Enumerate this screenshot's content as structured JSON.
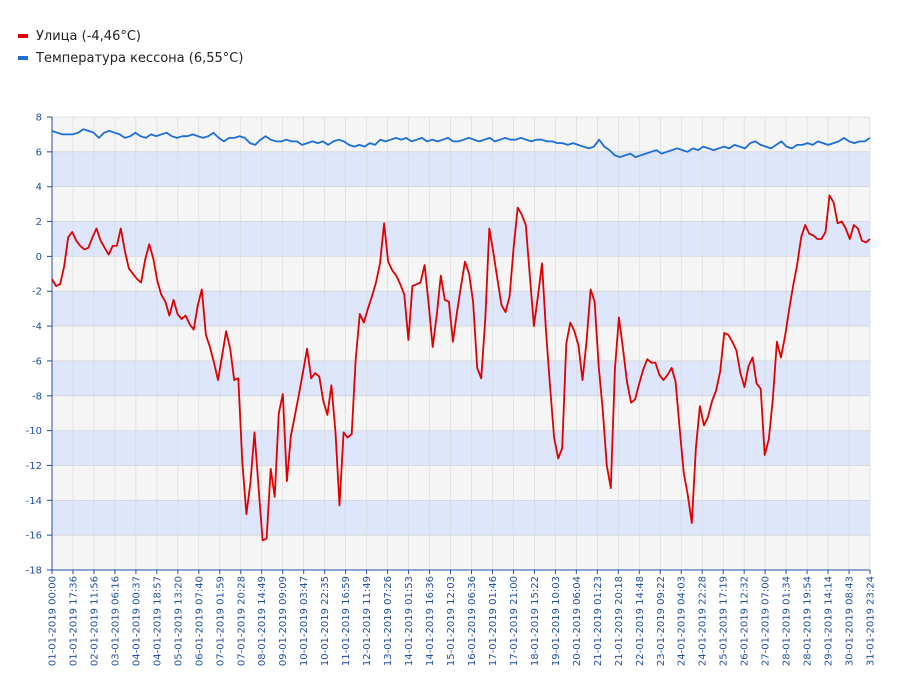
{
  "legend": [
    {
      "label": "Улица (-4,46°C)",
      "color": "#e00000"
    },
    {
      "label": "Температура кессона (6,55°C)",
      "color": "#1c6fd8"
    }
  ],
  "chart_data": {
    "type": "line",
    "title": "",
    "xlabel": "",
    "ylabel": "",
    "ylim": [
      -18,
      8
    ],
    "y_ticks": [
      8,
      6,
      4,
      2,
      0,
      -2,
      -4,
      -6,
      -8,
      -10,
      -12,
      -14,
      -16,
      -18
    ],
    "grid": true,
    "legend_position": "top-left",
    "x_tick_labels": [
      "01-01-2019 00:00",
      "01-01-2019 17:36",
      "02-01-2019 11:56",
      "03-01-2019 06:16",
      "04-01-2019 00:37",
      "04-01-2019 18:57",
      "05-01-2019 13:20",
      "06-01-2019 07:40",
      "07-01-2019 01:59",
      "07-01-2019 20:28",
      "08-01-2019 14:49",
      "09-01-2019 09:09",
      "10-01-2019 03:47",
      "10-01-2019 22:35",
      "11-01-2019 16:59",
      "12-01-2019 11:49",
      "13-01-2019 07:26",
      "14-01-2019 01:53",
      "14-01-2019 16:36",
      "15-01-2019 12:03",
      "16-01-2019 06:36",
      "17-01-2019 01:46",
      "17-01-2019 21:00",
      "18-01-2019 15:22",
      "19-01-2019 10:03",
      "20-01-2019 06:04",
      "21-01-2019 01:23",
      "21-01-2019 20:18",
      "22-01-2019 14:48",
      "23-01-2019 09:22",
      "24-01-2019 04:03",
      "24-01-2019 22:28",
      "25-01-2019 17:19",
      "26-01-2019 12:32",
      "27-01-2019 07:00",
      "28-01-2019 01:34",
      "28-01-2019 19:54",
      "29-01-2019 14:14",
      "30-01-2019 08:43",
      "31-01-2019 23:24"
    ],
    "series": [
      {
        "name": "Улица (-4,46°C)",
        "color": "#e00000",
        "values": [
          -1.3,
          -1.7,
          -1.6,
          -0.6,
          1.1,
          1.4,
          0.9,
          0.6,
          0.4,
          0.5,
          1.1,
          1.6,
          0.9,
          0.5,
          0.1,
          0.6,
          0.6,
          1.6,
          0.3,
          -0.7,
          -1.0,
          -1.3,
          -1.5,
          -0.2,
          0.7,
          -0.1,
          -1.4,
          -2.2,
          -2.6,
          -3.4,
          -2.5,
          -3.3,
          -3.6,
          -3.4,
          -3.9,
          -4.2,
          -2.8,
          -1.9,
          -4.5,
          -5.2,
          -6.1,
          -7.1,
          -5.7,
          -4.3,
          -5.3,
          -7.1,
          -7.0,
          -11.8,
          -14.8,
          -13.0,
          -10.1,
          -13.2,
          -16.3,
          -16.2,
          -12.2,
          -13.8,
          -9.0,
          -7.9,
          -12.9,
          -10.3,
          -9.1,
          -7.9,
          -6.6,
          -5.3,
          -7.0,
          -6.7,
          -6.9,
          -8.3,
          -9.1,
          -7.4,
          -10.1,
          -14.3,
          -10.1,
          -10.4,
          -10.2,
          -5.9,
          -3.3,
          -3.8,
          -3.0,
          -2.3,
          -1.5,
          -0.4,
          1.9,
          -0.3,
          -0.8,
          -1.1,
          -1.6,
          -2.2,
          -4.8,
          -1.7,
          -1.6,
          -1.5,
          -0.5,
          -2.7,
          -5.2,
          -3.4,
          -1.1,
          -2.5,
          -2.6,
          -4.9,
          -3.2,
          -1.7,
          -0.3,
          -1.0,
          -2.6,
          -6.4,
          -7.0,
          -3.6,
          1.6,
          0.2,
          -1.3,
          -2.8,
          -3.2,
          -2.3,
          0.5,
          2.8,
          2.4,
          1.8,
          -1.1,
          -4.0,
          -2.3,
          -0.4,
          -4.3,
          -7.5,
          -10.4,
          -11.6,
          -11.0,
          -5.0,
          -3.8,
          -4.3,
          -5.1,
          -7.1,
          -4.9,
          -1.9,
          -2.6,
          -6.3,
          -8.8,
          -12.0,
          -13.3,
          -6.5,
          -3.5,
          -5.3,
          -7.2,
          -8.4,
          -8.2,
          -7.3,
          -6.5,
          -5.9,
          -6.1,
          -6.1,
          -6.8,
          -7.1,
          -6.8,
          -6.4,
          -7.2,
          -9.9,
          -12.4,
          -13.7,
          -15.3,
          -11.0,
          -8.6,
          -9.7,
          -9.2,
          -8.3,
          -7.7,
          -6.6,
          -4.4,
          -4.5,
          -4.9,
          -5.4,
          -6.7,
          -7.5,
          -6.3,
          -5.8,
          -7.3,
          -7.6,
          -11.4,
          -10.5,
          -8.2,
          -4.9,
          -5.8,
          -4.6,
          -3.1,
          -1.7,
          -0.5,
          1.1,
          1.8,
          1.3,
          1.2,
          1.0,
          1.0,
          1.4,
          3.5,
          3.1,
          1.9,
          2.0,
          1.6,
          1.0,
          1.8,
          1.6,
          0.9,
          0.8,
          1.0
        ]
      },
      {
        "name": "Температура кессона (6,55°C)",
        "color": "#1c6fd8",
        "values": [
          7.2,
          7.1,
          7.0,
          7.0,
          7.0,
          7.1,
          7.3,
          7.2,
          7.1,
          6.8,
          7.1,
          7.2,
          7.1,
          7.0,
          6.8,
          6.9,
          7.1,
          6.9,
          6.8,
          7.0,
          6.9,
          7.0,
          7.1,
          6.9,
          6.8,
          6.9,
          6.9,
          7.0,
          6.9,
          6.8,
          6.9,
          7.1,
          6.8,
          6.6,
          6.8,
          6.8,
          6.9,
          6.8,
          6.5,
          6.4,
          6.7,
          6.9,
          6.7,
          6.6,
          6.6,
          6.7,
          6.6,
          6.6,
          6.4,
          6.5,
          6.6,
          6.5,
          6.6,
          6.4,
          6.6,
          6.7,
          6.6,
          6.4,
          6.3,
          6.4,
          6.3,
          6.5,
          6.4,
          6.7,
          6.6,
          6.7,
          6.8,
          6.7,
          6.8,
          6.6,
          6.7,
          6.8,
          6.6,
          6.7,
          6.6,
          6.7,
          6.8,
          6.6,
          6.6,
          6.7,
          6.8,
          6.7,
          6.6,
          6.7,
          6.8,
          6.6,
          6.7,
          6.8,
          6.7,
          6.7,
          6.8,
          6.7,
          6.6,
          6.7,
          6.7,
          6.6,
          6.6,
          6.5,
          6.5,
          6.4,
          6.5,
          6.4,
          6.3,
          6.2,
          6.3,
          6.7,
          6.3,
          6.1,
          5.8,
          5.7,
          5.8,
          5.9,
          5.7,
          5.8,
          5.9,
          6.0,
          6.1,
          5.9,
          6.0,
          6.1,
          6.2,
          6.1,
          6.0,
          6.2,
          6.1,
          6.3,
          6.2,
          6.1,
          6.2,
          6.3,
          6.2,
          6.4,
          6.3,
          6.2,
          6.5,
          6.6,
          6.4,
          6.3,
          6.2,
          6.4,
          6.6,
          6.3,
          6.2,
          6.4,
          6.4,
          6.5,
          6.4,
          6.6,
          6.5,
          6.4,
          6.5,
          6.6,
          6.8,
          6.6,
          6.5,
          6.6,
          6.6,
          6.8
        ]
      }
    ]
  }
}
